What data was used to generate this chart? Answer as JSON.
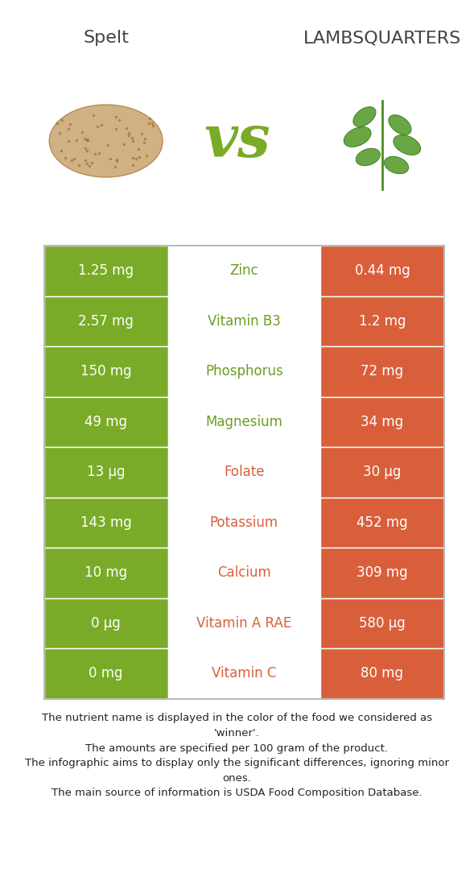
{
  "title_left": "Spelt",
  "title_right": "Lambsquarters",
  "vs_text": "vs",
  "green_color": "#7aab28",
  "red_color": "#d95f3b",
  "white_color": "#ffffff",
  "bg_color": "#ffffff",
  "border_color": "#cccccc",
  "green_text_color": "#6b9e22",
  "red_text_color": "#d95f3b",
  "rows": [
    {
      "nutrient": "Zinc",
      "winner": "green",
      "left_val": "1.25 mg",
      "right_val": "0.44 mg"
    },
    {
      "nutrient": "Vitamin B3",
      "winner": "green",
      "left_val": "2.57 mg",
      "right_val": "1.2 mg"
    },
    {
      "nutrient": "Phosphorus",
      "winner": "green",
      "left_val": "150 mg",
      "right_val": "72 mg"
    },
    {
      "nutrient": "Magnesium",
      "winner": "green",
      "left_val": "49 mg",
      "right_val": "34 mg"
    },
    {
      "nutrient": "Folate",
      "winner": "red",
      "left_val": "13 μg",
      "right_val": "30 μg"
    },
    {
      "nutrient": "Potassium",
      "winner": "red",
      "left_val": "143 mg",
      "right_val": "452 mg"
    },
    {
      "nutrient": "Calcium",
      "winner": "red",
      "left_val": "10 mg",
      "right_val": "309 mg"
    },
    {
      "nutrient": "Vitamin A RAE",
      "winner": "red",
      "left_val": "0 μg",
      "right_val": "580 μg"
    },
    {
      "nutrient": "Vitamin C",
      "winner": "red",
      "left_val": "0 mg",
      "right_val": "80 mg"
    }
  ],
  "footnote_lines": [
    "The nutrient name is displayed in the color of the food we considered as",
    "'winner'.",
    "The amounts are specified per 100 gram of the product.",
    "The infographic aims to display only the significant differences, ignoring minor",
    "ones.",
    "The main source of information is USDA Food Composition Database."
  ]
}
